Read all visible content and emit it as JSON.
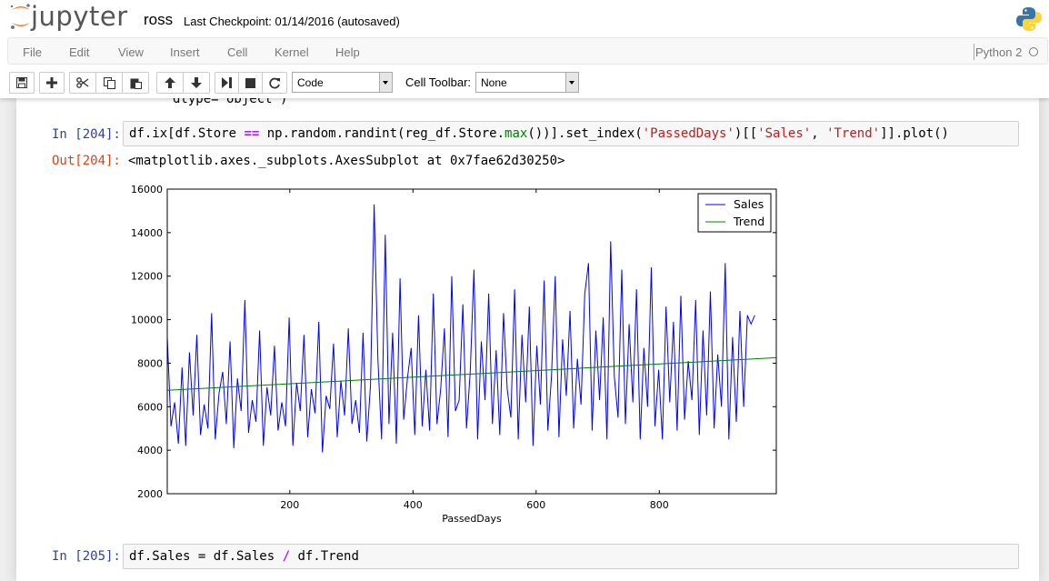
{
  "header": {
    "logo_text": "jupyter",
    "notebook_name": "ross",
    "checkpoint": "Last Checkpoint: 01/14/2016 (autosaved)"
  },
  "menu": {
    "items": [
      "File",
      "Edit",
      "View",
      "Insert",
      "Cell",
      "Kernel",
      "Help"
    ],
    "kernel_name": "Python 2"
  },
  "toolbar": {
    "buttons": [
      "save-icon",
      "plus-icon",
      "scissors-icon",
      "copy-icon",
      "paste-icon",
      "arrow-up-icon",
      "arrow-down-icon",
      "step-forward-icon",
      "stop-icon",
      "restart-icon"
    ],
    "cell_type": "Code",
    "cell_toolbar_label": "Cell Toolbar:",
    "cell_toolbar_value": "None"
  },
  "cells": {
    "prev_output": "dtype= object )",
    "cell1": {
      "prompt_in": "In [204]:",
      "code_tokens": [
        {
          "t": "df.ix[df.Store ",
          "c": ""
        },
        {
          "t": "==",
          "c": "op"
        },
        {
          "t": " np.random.randint(reg_df.Store.",
          "c": ""
        },
        {
          "t": "max",
          "c": "bi"
        },
        {
          "t": "())].set_index(",
          "c": ""
        },
        {
          "t": "'PassedDays'",
          "c": "str"
        },
        {
          "t": ")[[",
          "c": ""
        },
        {
          "t": "'Sales'",
          "c": "str"
        },
        {
          "t": ", ",
          "c": ""
        },
        {
          "t": "'Trend'",
          "c": "str"
        },
        {
          "t": "]].plot()",
          "c": ""
        }
      ],
      "prompt_out": "Out[204]:",
      "output_text": "<matplotlib.axes._subplots.AxesSubplot at 0x7fae62d30250>"
    },
    "cell2": {
      "prompt_in": "In [205]:",
      "code_tokens": [
        {
          "t": "df.Sales = df.Sales ",
          "c": ""
        },
        {
          "t": "/",
          "c": "op"
        },
        {
          "t": " df.Trend",
          "c": ""
        }
      ]
    }
  },
  "chart_data": {
    "type": "line",
    "title": "",
    "xlabel": "PassedDays",
    "ylabel": "",
    "xlim": [
      1,
      990
    ],
    "ylim": [
      2000,
      16000
    ],
    "xticks": [
      200,
      400,
      600,
      800
    ],
    "yticks": [
      2000,
      4000,
      6000,
      8000,
      10000,
      12000,
      14000,
      16000
    ],
    "legend_position": "top-right",
    "series": [
      {
        "name": "Sales",
        "color": "#0000ff",
        "x_start": 1,
        "x_step": 6,
        "values": [
          9200,
          5100,
          6200,
          4300,
          7800,
          4200,
          8500,
          5600,
          9300,
          4700,
          6100,
          5000,
          10300,
          4500,
          6600,
          7600,
          5200,
          9000,
          4100,
          7300,
          5800,
          10900,
          4800,
          6300,
          5300,
          9500,
          4200,
          6900,
          5600,
          8800,
          4900,
          6200,
          5100,
          10100,
          4200,
          7100,
          5800,
          9300,
          4600,
          6800,
          5700,
          9900,
          3900,
          6500,
          5900,
          8900,
          4600,
          7200,
          5600,
          9600,
          5200,
          6300,
          4800,
          9400,
          4400,
          7000,
          15300,
          8200,
          4500,
          13900,
          5200,
          9400,
          4300,
          11900,
          5400,
          7300,
          8700,
          4700,
          10200,
          5100,
          7700,
          4900,
          11200,
          5200,
          6800,
          9600,
          4600,
          12000,
          5800,
          6300,
          10700,
          5000,
          7600,
          12300,
          4500,
          9000,
          6300,
          11200,
          5200,
          8600,
          4700,
          10300,
          6800,
          5500,
          11400,
          4500,
          9300,
          6200,
          10600,
          4200,
          8800,
          6100,
          11800,
          4900,
          7400,
          12000,
          4600,
          9100,
          6500,
          10400,
          5000,
          8200,
          6100,
          11200,
          12600,
          4900,
          9500,
          6300,
          10100,
          4500,
          13600,
          7400,
          5500,
          12300,
          5200,
          9800,
          6200,
          11400,
          4500,
          8700,
          6000,
          12400,
          5100,
          7700,
          4500,
          10600,
          6200,
          9900,
          4900,
          11100,
          5400,
          8100,
          6300,
          10900,
          4700,
          9500,
          5600,
          11300,
          5000,
          8400,
          6000,
          12600,
          4500,
          9200,
          5300,
          10400,
          6000,
          10200,
          9800,
          10200
        ]
      },
      {
        "name": "Trend",
        "color": "#008000",
        "x": [
          1,
          990
        ],
        "y": [
          6750,
          8250
        ]
      }
    ]
  }
}
